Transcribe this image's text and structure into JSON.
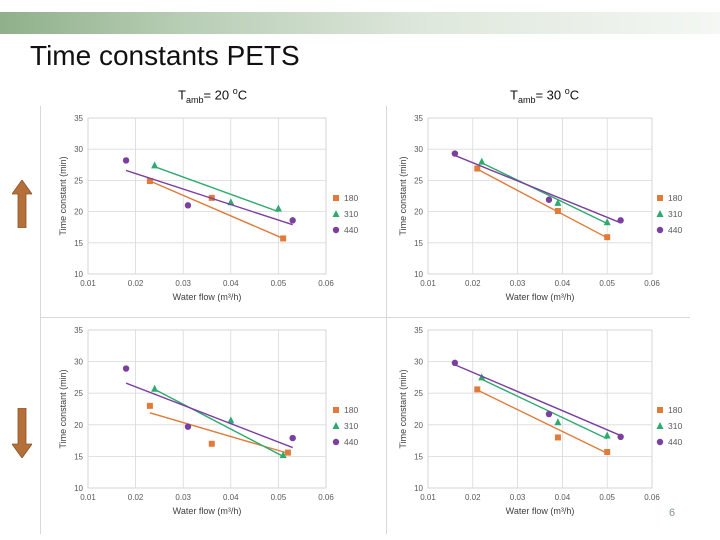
{
  "slide": {
    "title": "Time constants PETS",
    "page_number": "6",
    "condition_left": {
      "prefix": "T",
      "sub": "amb",
      "mid": "= 20 ",
      "sup": "o",
      "unit": "C"
    },
    "condition_right": {
      "prefix": "T",
      "sub": "amb",
      "mid": "= 30 ",
      "sup": "o",
      "unit": "C"
    },
    "colors": {
      "series_180": "#e07b39",
      "series_310": "#2eaa6e",
      "series_440": "#7b3fa0",
      "arrow": "#b5703a"
    }
  },
  "chart_data": [
    {
      "type": "scatter",
      "id": "top-left",
      "xlabel": "Water flow (m³/h)",
      "ylabel": "Time constant (min)",
      "xlim": [
        0.01,
        0.06
      ],
      "ylim": [
        10,
        35
      ],
      "x_ticks": [
        "0.01",
        "0.02",
        "0.03",
        "0.04",
        "0.05",
        "0.06"
      ],
      "y_ticks": [
        "10",
        "15",
        "20",
        "25",
        "30",
        "35"
      ],
      "series": [
        {
          "name": "180",
          "marker": "square",
          "x": [
            0.023,
            0.036,
            0.051
          ],
          "y": [
            24.9,
            22.2,
            15.7
          ],
          "fit": [
            [
              0.023,
              24.9
            ],
            [
              0.051,
              15.7
            ]
          ]
        },
        {
          "name": "310",
          "marker": "triangle",
          "x": [
            0.024,
            0.04,
            0.05
          ],
          "y": [
            27.4,
            21.5,
            20.5
          ],
          "fit": [
            [
              0.024,
              27.2
            ],
            [
              0.05,
              20.0
            ]
          ]
        },
        {
          "name": "440",
          "marker": "diamond",
          "x": [
            0.018,
            0.031,
            0.053
          ],
          "y": [
            28.2,
            21.0,
            18.6
          ],
          "fit": [
            [
              0.018,
              26.6
            ],
            [
              0.053,
              17.9
            ]
          ]
        }
      ]
    },
    {
      "type": "scatter",
      "id": "top-right",
      "xlabel": "Water flow (m³/h)",
      "ylabel": "Time constant (min)",
      "xlim": [
        0.01,
        0.06
      ],
      "ylim": [
        10,
        35
      ],
      "x_ticks": [
        "0.01",
        "0.02",
        "0.03",
        "0.04",
        "0.05",
        "0.06"
      ],
      "y_ticks": [
        "10",
        "15",
        "20",
        "25",
        "30",
        "35"
      ],
      "series": [
        {
          "name": "180",
          "marker": "square",
          "x": [
            0.021,
            0.039,
            0.05
          ],
          "y": [
            26.9,
            20.1,
            15.9
          ],
          "fit": [
            [
              0.021,
              26.8
            ],
            [
              0.05,
              15.8
            ]
          ]
        },
        {
          "name": "310",
          "marker": "triangle",
          "x": [
            0.022,
            0.039,
            0.05
          ],
          "y": [
            28.0,
            21.4,
            18.3
          ],
          "fit": [
            [
              0.022,
              27.8
            ],
            [
              0.05,
              18.1
            ]
          ]
        },
        {
          "name": "440",
          "marker": "diamond",
          "x": [
            0.016,
            0.037,
            0.053
          ],
          "y": [
            29.3,
            21.9,
            18.6
          ],
          "fit": [
            [
              0.016,
              29.0
            ],
            [
              0.053,
              18.2
            ]
          ]
        }
      ]
    },
    {
      "type": "scatter",
      "id": "bottom-left",
      "xlabel": "Water flow (m³/h)",
      "ylabel": "Time constant (min)",
      "xlim": [
        0.01,
        0.06
      ],
      "ylim": [
        10,
        35
      ],
      "x_ticks": [
        "0.01",
        "0.02",
        "0.03",
        "0.04",
        "0.05",
        "0.06"
      ],
      "y_ticks": [
        "10",
        "15",
        "20",
        "25",
        "30",
        "35"
      ],
      "series": [
        {
          "name": "180",
          "marker": "square",
          "x": [
            0.023,
            0.036,
            0.052
          ],
          "y": [
            23.0,
            17.0,
            15.6
          ],
          "fit": [
            [
              0.023,
              21.9
            ],
            [
              0.052,
              15.5
            ]
          ]
        },
        {
          "name": "310",
          "marker": "triangle",
          "x": [
            0.024,
            0.04,
            0.051
          ],
          "y": [
            25.7,
            20.7,
            15.2
          ],
          "fit": [
            [
              0.024,
              25.6
            ],
            [
              0.051,
              15.0
            ]
          ]
        },
        {
          "name": "440",
          "marker": "diamond",
          "x": [
            0.018,
            0.031,
            0.053
          ],
          "y": [
            28.9,
            19.7,
            17.9
          ],
          "fit": [
            [
              0.018,
              26.6
            ],
            [
              0.053,
              16.4
            ]
          ]
        }
      ]
    },
    {
      "type": "scatter",
      "id": "bottom-right",
      "xlabel": "Water flow (m³/h)",
      "ylabel": "Time constant (min)",
      "xlim": [
        0.01,
        0.06
      ],
      "ylim": [
        10,
        35
      ],
      "x_ticks": [
        "0.01",
        "0.02",
        "0.03",
        "0.04",
        "0.05",
        "0.06"
      ],
      "y_ticks": [
        "10",
        "15",
        "20",
        "25",
        "30",
        "35"
      ],
      "series": [
        {
          "name": "180",
          "marker": "square",
          "x": [
            0.021,
            0.039,
            0.05
          ],
          "y": [
            25.6,
            18.0,
            15.7
          ],
          "fit": [
            [
              0.021,
              25.5
            ],
            [
              0.05,
              15.5
            ]
          ]
        },
        {
          "name": "310",
          "marker": "triangle",
          "x": [
            0.022,
            0.039,
            0.05
          ],
          "y": [
            27.5,
            20.4,
            18.3
          ],
          "fit": [
            [
              0.022,
              27.2
            ],
            [
              0.05,
              17.8
            ]
          ]
        },
        {
          "name": "440",
          "marker": "diamond",
          "x": [
            0.016,
            0.037,
            0.053
          ],
          "y": [
            29.8,
            21.7,
            18.1
          ],
          "fit": [
            [
              0.016,
              29.5
            ],
            [
              0.053,
              18.3
            ]
          ]
        }
      ]
    }
  ]
}
